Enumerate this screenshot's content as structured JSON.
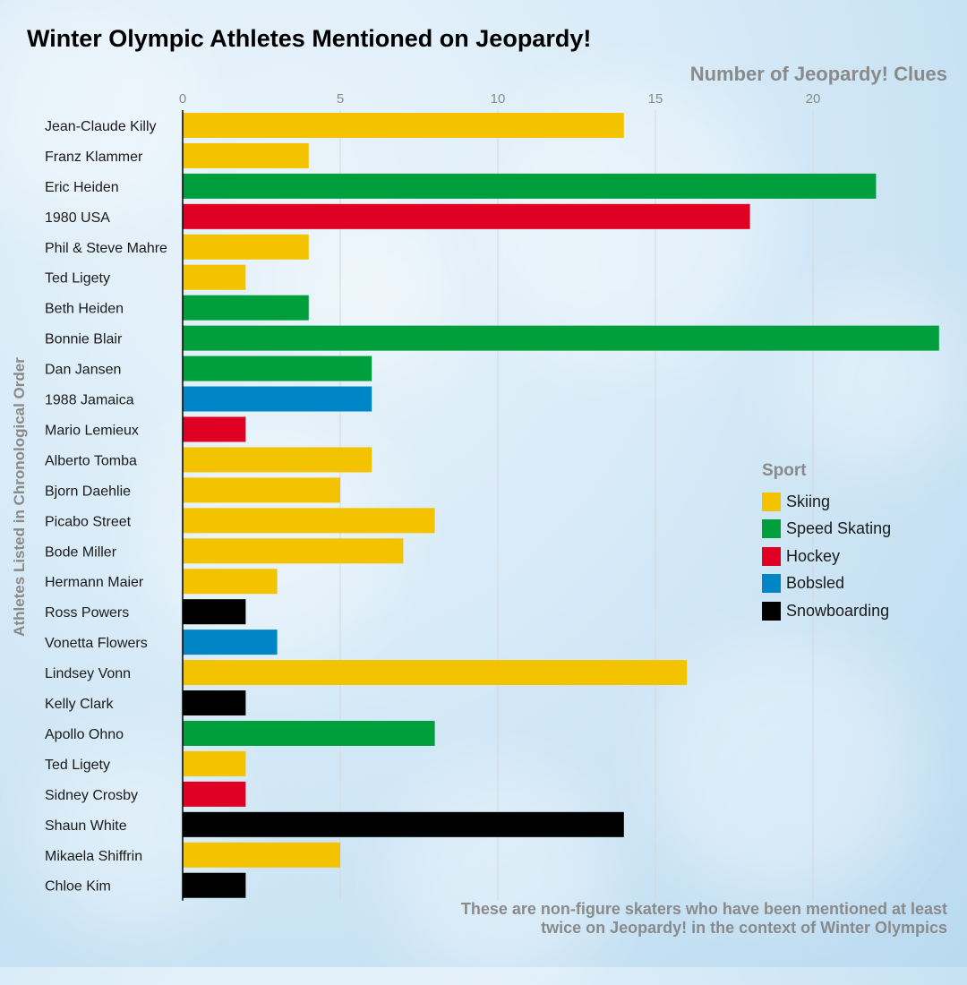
{
  "chart_data": {
    "type": "bar",
    "orientation": "horizontal",
    "title": "Winter Olympic Athletes Mentioned on Jeopardy!",
    "xlabel": "Number of Jeopardy! Clues",
    "ylabel": "Athletes Listed in Chronological Order",
    "xlim": [
      0,
      24
    ],
    "xticks": [
      0,
      5,
      10,
      15,
      20
    ],
    "grid": true,
    "legend_title": "Sport",
    "legend_position": "right",
    "categories": [
      "Jean-Claude Killy",
      "Franz Klammer",
      "Eric Heiden",
      "1980 USA",
      "Phil & Steve Mahre",
      "Ted Ligety",
      "Beth Heiden",
      "Bonnie Blair",
      "Dan Jansen",
      "1988 Jamaica",
      "Mario Lemieux",
      "Alberto Tomba",
      "Bjorn Daehlie",
      "Picabo Street",
      "Bode Miller",
      "Hermann Maier",
      "Ross Powers",
      "Vonetta Flowers",
      "Lindsey Vonn",
      "Kelly Clark",
      "Apollo Ohno",
      "Ted Ligety",
      "Sidney Crosby",
      "Shaun White",
      "Mikaela Shiffrin",
      "Chloe Kim"
    ],
    "values": [
      14,
      4,
      22,
      18,
      4,
      2,
      4,
      24,
      6,
      6,
      2,
      6,
      5,
      8,
      7,
      3,
      2,
      3,
      16,
      2,
      8,
      2,
      2,
      14,
      5,
      2
    ],
    "sports": [
      "Skiing",
      "Skiing",
      "Speed Skating",
      "Hockey",
      "Skiing",
      "Skiing",
      "Speed Skating",
      "Speed Skating",
      "Speed Skating",
      "Bobsled",
      "Hockey",
      "Skiing",
      "Skiing",
      "Skiing",
      "Skiing",
      "Skiing",
      "Snowboarding",
      "Bobsled",
      "Skiing",
      "Snowboarding",
      "Speed Skating",
      "Skiing",
      "Hockey",
      "Snowboarding",
      "Skiing",
      "Snowboarding"
    ],
    "legend": [
      {
        "name": "Skiing",
        "color": "#f4c300"
      },
      {
        "name": "Speed Skating",
        "color": "#009f3d"
      },
      {
        "name": "Hockey",
        "color": "#df0024"
      },
      {
        "name": "Bobsled",
        "color": "#0085c7"
      },
      {
        "name": "Snowboarding",
        "color": "#000000"
      }
    ],
    "footnote": "These are non-figure skaters who have been mentioned at least twice on Jeopardy! in the context of Winter Olympics"
  }
}
